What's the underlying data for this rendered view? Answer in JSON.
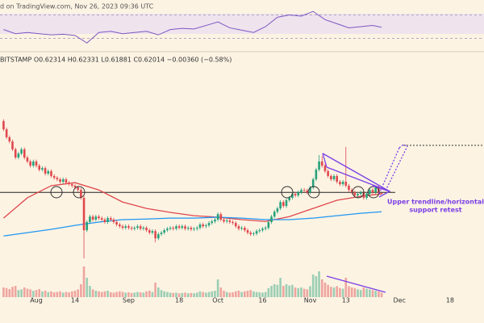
{
  "chart_data": {
    "type": "candlestick",
    "header": "d on TradingView.com, Nov 26, 2023 09:36 UTC",
    "legend": "BITSTAMP  O0.62314  H0.62331  L0.61881  C0.62014  −0.00360 (−0.58%)",
    "annotation": [
      "Upper trendline/horizontal",
      "support retest"
    ],
    "up_color": "#26a17b",
    "down_color": "#e0474c",
    "xlim": [
      -1.2,
      161.4
    ],
    "ylim": [
      0.367,
      1.084
    ],
    "xticks": [
      {
        "value": 11,
        "label": "Aug"
      },
      {
        "value": 24,
        "label": "14"
      },
      {
        "value": 42,
        "label": "Sep"
      },
      {
        "value": 59,
        "label": "18"
      },
      {
        "value": 72,
        "label": "Oct"
      },
      {
        "value": 87,
        "label": "16"
      },
      {
        "value": 103,
        "label": "Nov"
      },
      {
        "value": 115,
        "label": "13"
      },
      {
        "value": 133,
        "label": "Dec"
      },
      {
        "value": 150,
        "label": "18"
      }
    ],
    "open": [
      0.86,
      0.833,
      0.807,
      0.793,
      0.767,
      0.74,
      0.753,
      0.767,
      0.74,
      0.727,
      0.713,
      0.727,
      0.713,
      0.7,
      0.705,
      0.687,
      0.695,
      0.679,
      0.673,
      0.668,
      0.66,
      0.668,
      0.657,
      0.652,
      0.647,
      0.641,
      0.633,
      0.607,
      0.5,
      0.527,
      0.545,
      0.535,
      0.545,
      0.54,
      0.535,
      0.527,
      0.54,
      0.535,
      0.527,
      0.519,
      0.513,
      0.508,
      0.513,
      0.508,
      0.505,
      0.508,
      0.513,
      0.505,
      0.508,
      0.5,
      0.492,
      0.497,
      0.473,
      0.487,
      0.492,
      0.5,
      0.505,
      0.508,
      0.505,
      0.513,
      0.508,
      0.513,
      0.505,
      0.508,
      0.503,
      0.505,
      0.508,
      0.519,
      0.513,
      0.516,
      0.524,
      0.529,
      0.535,
      0.553,
      0.535,
      0.529,
      0.532,
      0.527,
      0.524,
      0.513,
      0.505,
      0.508,
      0.5,
      0.492,
      0.487,
      0.489,
      0.497,
      0.5,
      0.505,
      0.508,
      0.527,
      0.545,
      0.561,
      0.572,
      0.593,
      0.58,
      0.599,
      0.607,
      0.62,
      0.615,
      0.625,
      0.633,
      0.631,
      0.625,
      0.641,
      0.668,
      0.7,
      0.727,
      0.713,
      0.695,
      0.679,
      0.668,
      0.679,
      0.66,
      0.652,
      0.66,
      0.647,
      0.633,
      0.625,
      0.615,
      0.62,
      0.625,
      0.607,
      0.62,
      0.633,
      0.625,
      0.641,
      0.62314
    ],
    "high": [
      0.866,
      0.839,
      0.813,
      0.799,
      0.773,
      0.759,
      0.773,
      0.773,
      0.746,
      0.733,
      0.733,
      0.733,
      0.719,
      0.711,
      0.711,
      0.701,
      0.701,
      0.685,
      0.679,
      0.674,
      0.674,
      0.674,
      0.663,
      0.658,
      0.653,
      0.647,
      0.639,
      0.613,
      0.533,
      0.551,
      0.551,
      0.551,
      0.551,
      0.546,
      0.541,
      0.546,
      0.546,
      0.541,
      0.533,
      0.525,
      0.519,
      0.519,
      0.519,
      0.514,
      0.514,
      0.519,
      0.519,
      0.514,
      0.514,
      0.506,
      0.503,
      0.503,
      0.493,
      0.498,
      0.506,
      0.511,
      0.514,
      0.514,
      0.519,
      0.519,
      0.519,
      0.519,
      0.514,
      0.514,
      0.511,
      0.514,
      0.525,
      0.525,
      0.522,
      0.53,
      0.535,
      0.541,
      0.559,
      0.559,
      0.541,
      0.538,
      0.538,
      0.533,
      0.53,
      0.519,
      0.514,
      0.514,
      0.506,
      0.498,
      0.495,
      0.503,
      0.506,
      0.511,
      0.514,
      0.533,
      0.551,
      0.567,
      0.578,
      0.599,
      0.599,
      0.605,
      0.613,
      0.626,
      0.626,
      0.631,
      0.639,
      0.639,
      0.637,
      0.647,
      0.674,
      0.706,
      0.748,
      0.745,
      0.719,
      0.701,
      0.685,
      0.685,
      0.685,
      0.666,
      0.666,
      0.775,
      0.653,
      0.639,
      0.631,
      0.626,
      0.631,
      0.631,
      0.626,
      0.639,
      0.639,
      0.647,
      0.647,
      0.62331
    ],
    "low": [
      0.827,
      0.801,
      0.787,
      0.761,
      0.734,
      0.734,
      0.747,
      0.734,
      0.721,
      0.707,
      0.707,
      0.707,
      0.694,
      0.694,
      0.681,
      0.681,
      0.673,
      0.667,
      0.662,
      0.654,
      0.654,
      0.651,
      0.646,
      0.641,
      0.635,
      0.627,
      0.601,
      0.407,
      0.494,
      0.521,
      0.529,
      0.529,
      0.534,
      0.529,
      0.521,
      0.521,
      0.529,
      0.521,
      0.513,
      0.507,
      0.502,
      0.502,
      0.502,
      0.499,
      0.499,
      0.502,
      0.499,
      0.499,
      0.494,
      0.486,
      0.486,
      0.46,
      0.467,
      0.481,
      0.486,
      0.494,
      0.499,
      0.499,
      0.499,
      0.502,
      0.502,
      0.499,
      0.499,
      0.497,
      0.497,
      0.499,
      0.502,
      0.507,
      0.507,
      0.51,
      0.518,
      0.523,
      0.529,
      0.529,
      0.523,
      0.523,
      0.521,
      0.518,
      0.507,
      0.499,
      0.499,
      0.494,
      0.486,
      0.481,
      0.481,
      0.483,
      0.491,
      0.494,
      0.499,
      0.502,
      0.521,
      0.539,
      0.555,
      0.566,
      0.574,
      0.574,
      0.593,
      0.601,
      0.609,
      0.609,
      0.619,
      0.625,
      0.619,
      0.619,
      0.635,
      0.662,
      0.694,
      0.707,
      0.689,
      0.673,
      0.662,
      0.662,
      0.654,
      0.646,
      0.646,
      0.641,
      0.627,
      0.619,
      0.609,
      0.609,
      0.614,
      0.601,
      0.601,
      0.614,
      0.619,
      0.619,
      0.617,
      0.61881
    ],
    "close": [
      0.833,
      0.807,
      0.793,
      0.767,
      0.74,
      0.753,
      0.767,
      0.74,
      0.727,
      0.713,
      0.727,
      0.713,
      0.7,
      0.705,
      0.687,
      0.695,
      0.679,
      0.673,
      0.668,
      0.66,
      0.668,
      0.657,
      0.652,
      0.647,
      0.641,
      0.633,
      0.607,
      0.5,
      0.527,
      0.545,
      0.535,
      0.545,
      0.54,
      0.535,
      0.527,
      0.54,
      0.535,
      0.527,
      0.519,
      0.513,
      0.508,
      0.513,
      0.508,
      0.505,
      0.508,
      0.513,
      0.505,
      0.508,
      0.5,
      0.492,
      0.497,
      0.473,
      0.487,
      0.492,
      0.5,
      0.505,
      0.508,
      0.505,
      0.513,
      0.508,
      0.513,
      0.505,
      0.508,
      0.503,
      0.505,
      0.508,
      0.519,
      0.513,
      0.516,
      0.524,
      0.529,
      0.535,
      0.553,
      0.535,
      0.529,
      0.532,
      0.527,
      0.524,
      0.513,
      0.505,
      0.508,
      0.5,
      0.492,
      0.487,
      0.489,
      0.497,
      0.5,
      0.505,
      0.508,
      0.527,
      0.545,
      0.561,
      0.572,
      0.593,
      0.58,
      0.599,
      0.607,
      0.62,
      0.615,
      0.625,
      0.633,
      0.631,
      0.625,
      0.641,
      0.668,
      0.7,
      0.727,
      0.713,
      0.695,
      0.679,
      0.668,
      0.679,
      0.66,
      0.652,
      0.66,
      0.647,
      0.633,
      0.625,
      0.615,
      0.62,
      0.625,
      0.607,
      0.62,
      0.633,
      0.625,
      0.641,
      0.623,
      0.62014
    ],
    "volume": [
      30,
      28,
      25,
      32,
      35,
      22,
      24,
      30,
      26,
      24,
      20,
      22,
      25,
      18,
      20,
      16,
      18,
      15,
      16,
      18,
      14,
      16,
      15,
      18,
      20,
      24,
      40,
      95,
      60,
      35,
      24,
      20,
      18,
      16,
      18,
      20,
      15,
      14,
      16,
      18,
      16,
      14,
      15,
      13,
      14,
      16,
      15,
      14,
      18,
      20,
      16,
      45,
      30,
      22,
      18,
      16,
      14,
      13,
      14,
      12,
      13,
      14,
      12,
      13,
      12,
      14,
      18,
      16,
      14,
      16,
      18,
      20,
      55,
      30,
      20,
      16,
      14,
      15,
      18,
      20,
      16,
      18,
      20,
      22,
      18,
      16,
      15,
      14,
      16,
      28,
      35,
      40,
      38,
      60,
      35,
      40,
      36,
      38,
      30,
      28,
      30,
      26,
      24,
      34,
      70,
      65,
      80,
      55,
      45,
      38,
      32,
      30,
      34,
      28,
      26,
      60,
      34,
      30,
      28,
      24,
      22,
      30,
      26,
      24,
      22,
      20,
      18,
      14
    ],
    "vlim": [
      0,
      100
    ],
    "lines": [
      {
        "color": "#e0474c",
        "x": [
          0,
          8,
          16,
          24,
          32,
          40,
          48,
          56,
          64,
          72,
          80,
          88,
          96,
          104,
          112,
          120,
          127
        ],
        "values": [
          0.54,
          0.607,
          0.647,
          0.657,
          0.633,
          0.593,
          0.572,
          0.559,
          0.548,
          0.543,
          0.535,
          0.529,
          0.545,
          0.572,
          0.599,
          0.612,
          0.62
        ]
      },
      {
        "color": "#2196f3",
        "x": [
          0,
          8,
          16,
          24,
          32,
          40,
          48,
          56,
          64,
          72,
          80,
          88,
          96,
          104,
          112,
          120,
          127
        ],
        "values": [
          0.481,
          0.492,
          0.503,
          0.516,
          0.527,
          0.535,
          0.537,
          0.54,
          0.54,
          0.543,
          0.54,
          0.535,
          0.535,
          0.54,
          0.548,
          0.556,
          0.561
        ]
      }
    ],
    "support": 0.625,
    "target": 0.78,
    "rsi": {
      "color": "#7e57c2",
      "ylim": [
        10,
        90
      ],
      "levels": [
        30,
        70
      ],
      "x": [
        0,
        4,
        8,
        12,
        16,
        20,
        24,
        28,
        32,
        36,
        40,
        44,
        48,
        52,
        56,
        60,
        64,
        68,
        72,
        76,
        80,
        84,
        88,
        92,
        96,
        100,
        104,
        108,
        112,
        116,
        120,
        124,
        127
      ],
      "values": [
        45,
        38,
        40,
        38,
        36,
        37,
        35,
        22,
        40,
        42,
        38,
        40,
        42,
        36,
        45,
        47,
        46,
        52,
        58,
        48,
        44,
        40,
        50,
        66,
        70,
        68,
        76,
        62,
        55,
        48,
        50,
        52,
        49
      ]
    }
  }
}
